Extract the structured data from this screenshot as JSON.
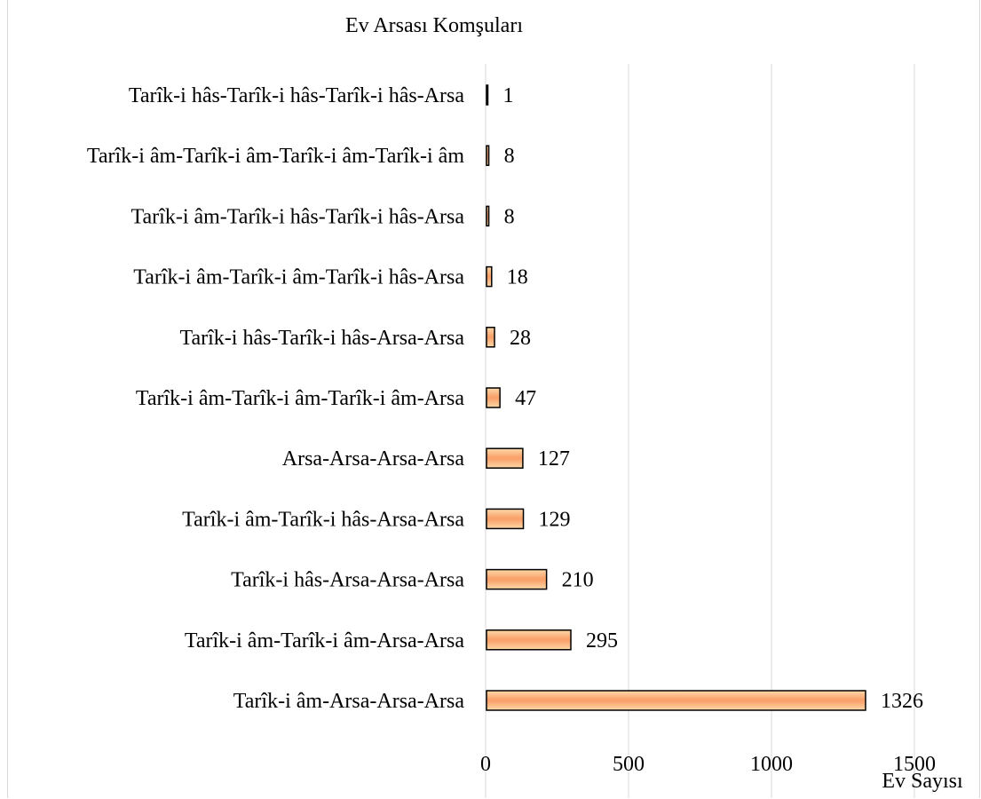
{
  "chart_data": {
    "type": "bar",
    "orientation": "horizontal",
    "ylabel": "Ev Arsası Komşuları",
    "xlabel": "Ev Sayısı",
    "categories": [
      "Tarîk-i hâs-Tarîk-i hâs-Tarîk-i hâs-Arsa",
      "Tarîk-i âm-Tarîk-i âm-Tarîk-i âm-Tarîk-i âm",
      "Tarîk-i âm-Tarîk-i hâs-Tarîk-i hâs-Arsa",
      "Tarîk-i âm-Tarîk-i âm-Tarîk-i hâs-Arsa",
      "Tarîk-i hâs-Tarîk-i hâs-Arsa-Arsa",
      "Tarîk-i âm-Tarîk-i âm-Tarîk-i âm-Arsa",
      "Arsa-Arsa-Arsa-Arsa",
      "Tarîk-i âm-Tarîk-i hâs-Arsa-Arsa",
      "Tarîk-i hâs-Arsa-Arsa-Arsa",
      "Tarîk-i âm-Tarîk-i âm-Arsa-Arsa",
      "Tarîk-i âm-Arsa-Arsa-Arsa"
    ],
    "values": [
      1,
      8,
      8,
      18,
      28,
      47,
      127,
      129,
      210,
      295,
      1326
    ],
    "xlim": [
      0,
      1500
    ],
    "xticks": [
      0,
      500,
      1000,
      1500
    ],
    "grid": "vertical",
    "data_labels": true,
    "colors": {
      "bar_fill": "#f9a26c",
      "bar_highlight": "#fdd9a8",
      "bar_stroke": "#000000",
      "grid": "#d9d9d9"
    }
  }
}
